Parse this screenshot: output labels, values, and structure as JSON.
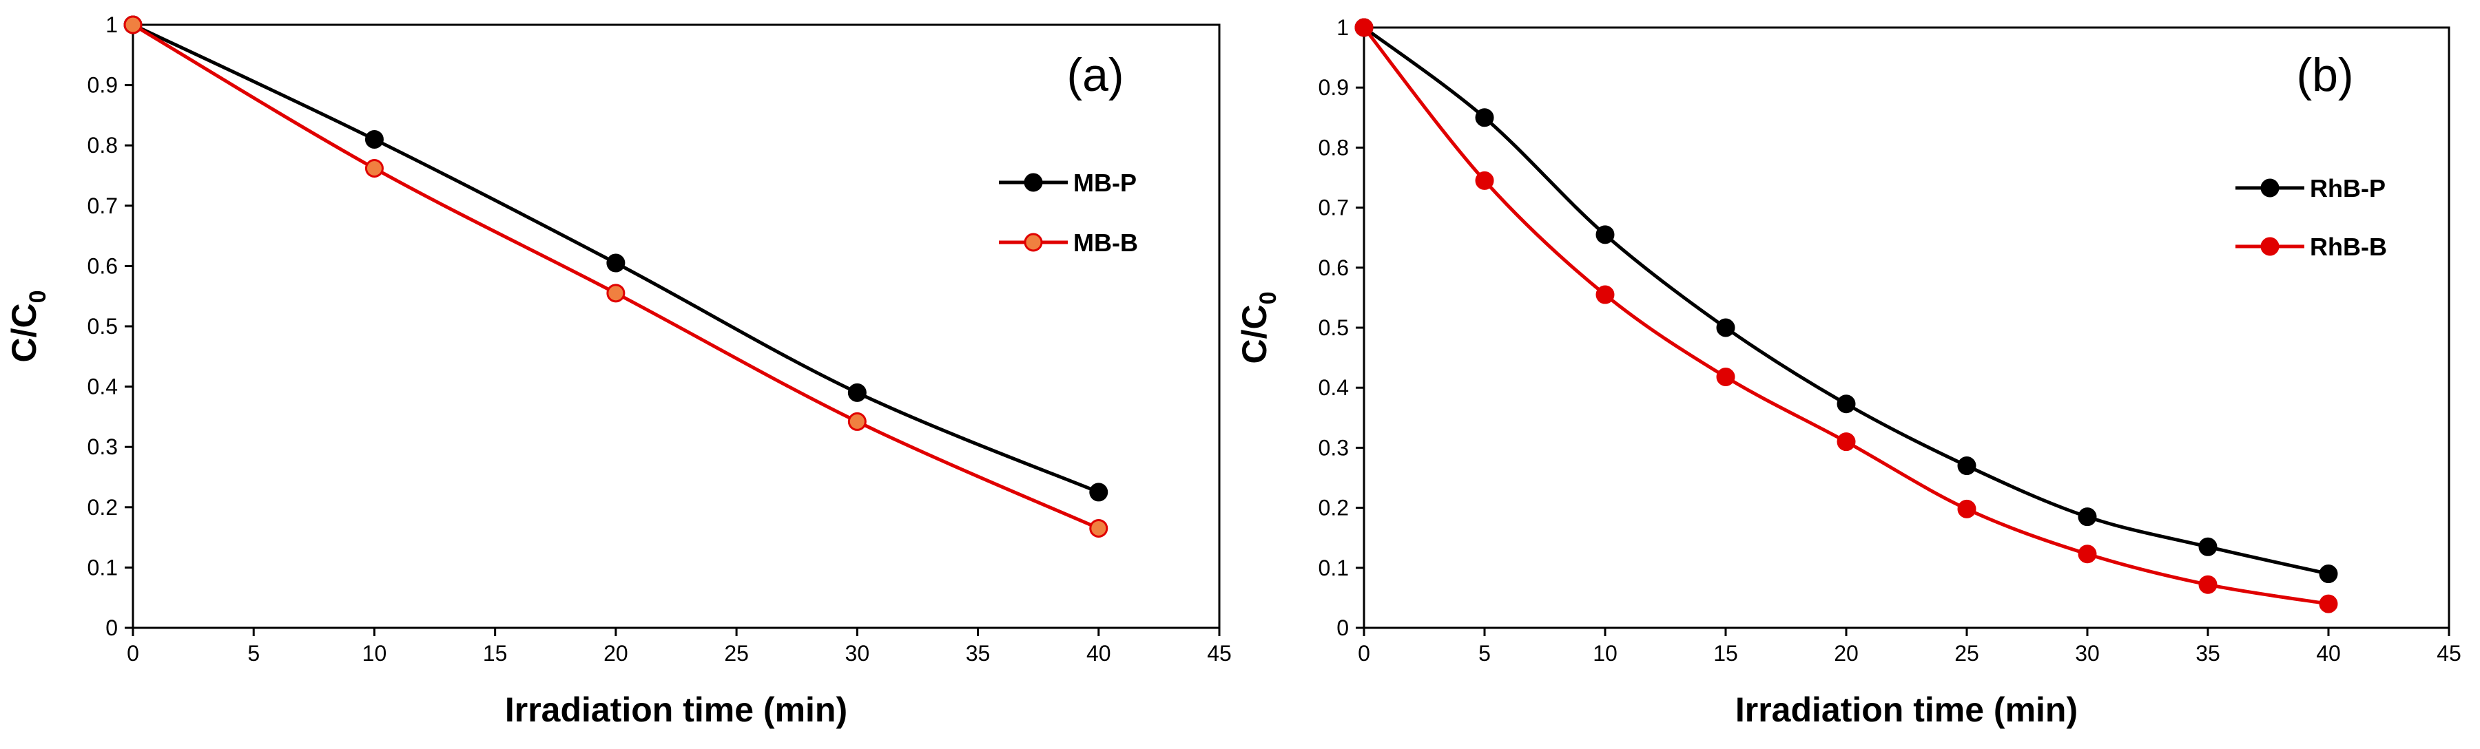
{
  "chart_data": [
    {
      "type": "line",
      "panel_label": "(a)",
      "xlabel": "Irradiation time (min)",
      "ylabel": "C/C",
      "ylabel_sub": "0",
      "xlim": [
        0,
        45
      ],
      "ylim": [
        0,
        1
      ],
      "xticks": [
        0,
        5,
        10,
        15,
        20,
        25,
        30,
        35,
        40,
        45
      ],
      "yticks": [
        0,
        0.1,
        0.2,
        0.3,
        0.4,
        0.5,
        0.6,
        0.7,
        0.8,
        0.9,
        1
      ],
      "x": [
        0,
        10,
        20,
        30,
        40
      ],
      "legend_position": "upper-right",
      "series": [
        {
          "name": "MB-P",
          "color": "#000000",
          "marker_fill": "#000000",
          "values": [
            1.0,
            0.81,
            0.605,
            0.39,
            0.225
          ]
        },
        {
          "name": "MB-B",
          "color": "#e00000",
          "marker_fill": "#f08040",
          "values": [
            1.0,
            0.762,
            0.555,
            0.342,
            0.165
          ]
        }
      ]
    },
    {
      "type": "line",
      "panel_label": "(b)",
      "xlabel": "Irradiation time (min)",
      "ylabel": "C/C",
      "ylabel_sub": "0",
      "xlim": [
        0,
        45
      ],
      "ylim": [
        0,
        1
      ],
      "xticks": [
        0,
        5,
        10,
        15,
        20,
        25,
        30,
        35,
        40,
        45
      ],
      "yticks": [
        0,
        0.1,
        0.2,
        0.3,
        0.4,
        0.5,
        0.6,
        0.7,
        0.8,
        0.9,
        1
      ],
      "x": [
        0,
        5,
        10,
        15,
        20,
        25,
        30,
        35,
        40
      ],
      "legend_position": "upper-right",
      "series": [
        {
          "name": "RhB-P",
          "color": "#000000",
          "marker_fill": "#000000",
          "values": [
            1.0,
            0.85,
            0.655,
            0.5,
            0.373,
            0.27,
            0.185,
            0.135,
            0.09
          ]
        },
        {
          "name": "RhB-B",
          "color": "#e00000",
          "marker_fill": "#e00000",
          "values": [
            1.0,
            0.745,
            0.555,
            0.418,
            0.31,
            0.198,
            0.123,
            0.072,
            0.04
          ]
        }
      ]
    }
  ]
}
